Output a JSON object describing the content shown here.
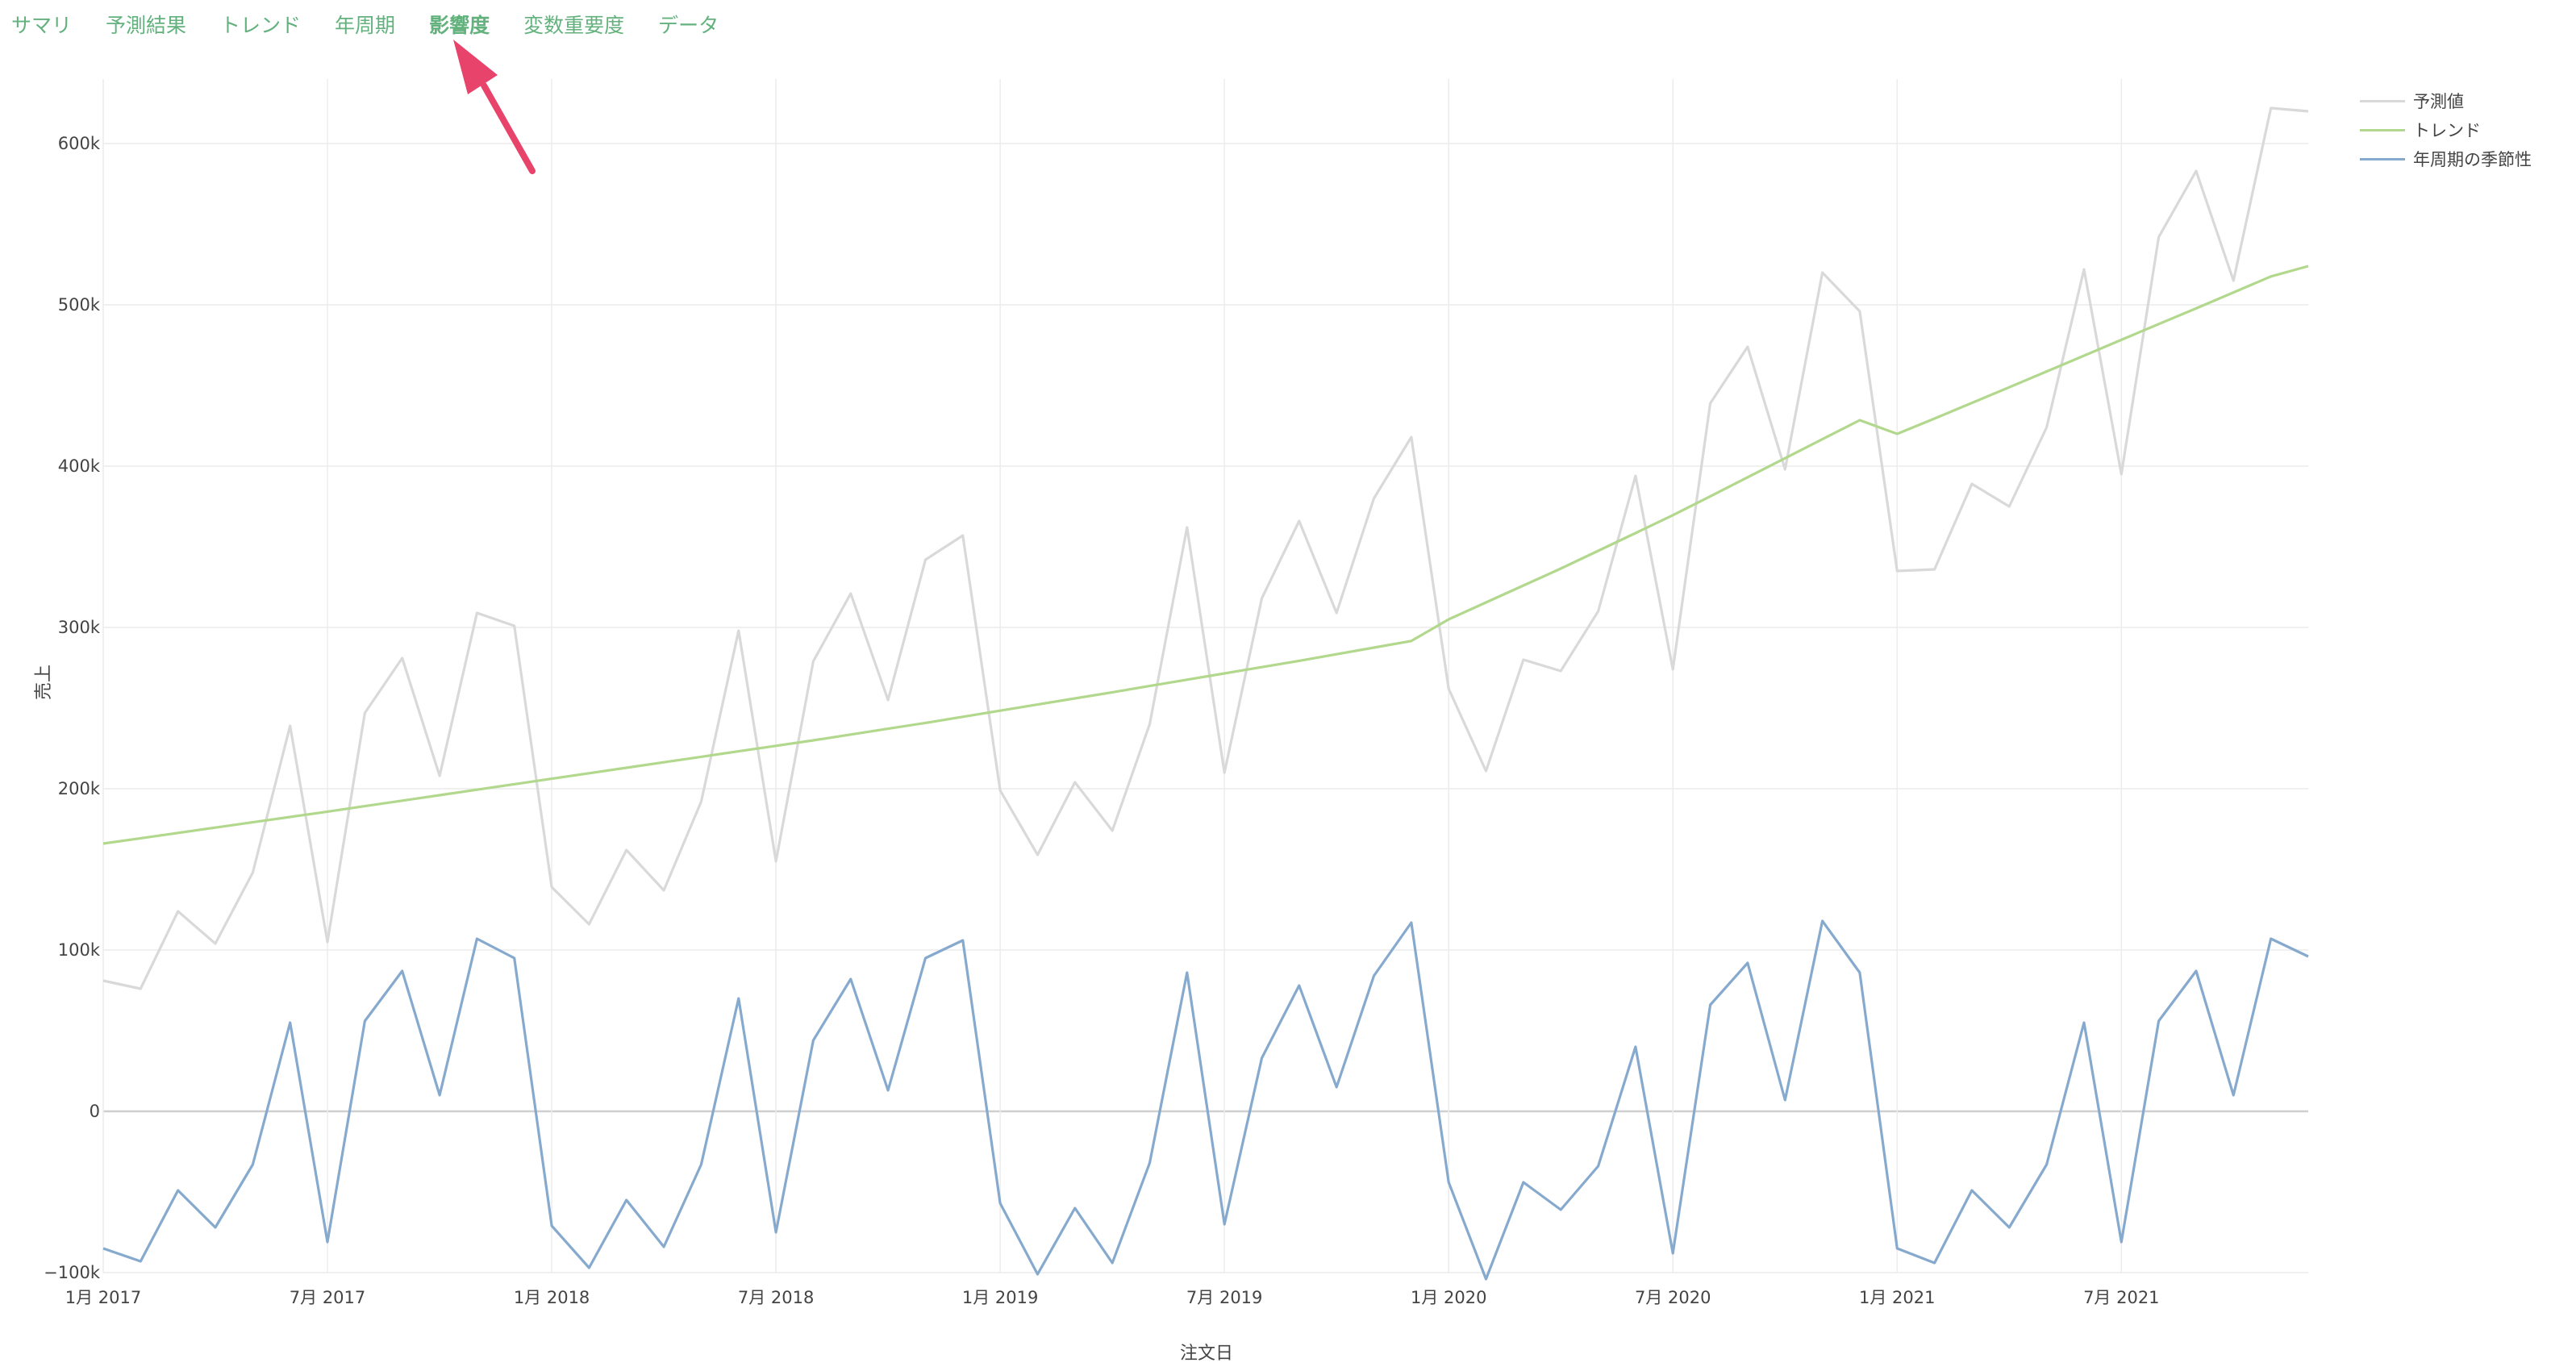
{
  "tabs": [
    {
      "label": "サマリ",
      "active": false
    },
    {
      "label": "予測結果",
      "active": false
    },
    {
      "label": "トレンド",
      "active": false
    },
    {
      "label": "年周期",
      "active": false
    },
    {
      "label": "影響度",
      "active": true
    },
    {
      "label": "変数重要度",
      "active": false
    },
    {
      "label": "データ",
      "active": false
    }
  ],
  "colors": {
    "tab_text": "#63b27e",
    "annotation_arrow": "#e8436a",
    "grid": "#ececec",
    "zero_line": "#cfcfcf"
  },
  "chart_data": {
    "type": "line",
    "xlabel": "注文日",
    "ylabel": "売上",
    "ylim": [
      -100000,
      640000
    ],
    "grid": true,
    "legend_position": "top-right",
    "x_start": "2017-01",
    "x_interval": "month",
    "xticks": [
      "1月 2017",
      "7月 2017",
      "1月 2018",
      "7月 2018",
      "1月 2019",
      "7月 2019",
      "1月 2020",
      "7月 2020",
      "1月 2021",
      "7月 2021"
    ],
    "yticks": [
      {
        "value": -100000,
        "label": "−100k"
      },
      {
        "value": 0,
        "label": "0"
      },
      {
        "value": 100000,
        "label": "100k"
      },
      {
        "value": 200000,
        "label": "200k"
      },
      {
        "value": 300000,
        "label": "300k"
      },
      {
        "value": 400000,
        "label": "400k"
      },
      {
        "value": 500000,
        "label": "500k"
      },
      {
        "value": 600000,
        "label": "600k"
      }
    ],
    "series": [
      {
        "name": "予測値",
        "color": "#d9d9d9",
        "values": [
          81000,
          76000,
          124000,
          104000,
          148000,
          239000,
          105000,
          247000,
          281000,
          208000,
          309000,
          301000,
          139000,
          116000,
          162000,
          137000,
          192000,
          298000,
          155000,
          279000,
          321000,
          255000,
          342000,
          357000,
          199000,
          159000,
          204000,
          174000,
          240000,
          362000,
          210000,
          318000,
          366000,
          309000,
          380000,
          418000,
          262000,
          211000,
          280000,
          273000,
          310000,
          394000,
          274000,
          439000,
          474000,
          398000,
          520000,
          496000,
          335000,
          336000,
          389000,
          375000,
          424000,
          522000,
          395000,
          542000,
          583000,
          515000,
          622000,
          620000
        ]
      },
      {
        "name": "トレンド",
        "color": "#b2d88d",
        "values": [
          166000,
          169300,
          172600,
          175900,
          179200,
          182500,
          185800,
          189200,
          192600,
          196000,
          199400,
          202800,
          206200,
          209600,
          213000,
          216400,
          219800,
          223200,
          226600,
          230000,
          233600,
          237200,
          240800,
          244600,
          248400,
          252200,
          256000,
          259800,
          263700,
          267600,
          271500,
          275400,
          279300,
          283400,
          287500,
          291600,
          305000,
          315500,
          326000,
          336500,
          347500,
          358500,
          369600,
          381300,
          393100,
          404900,
          416700,
          428500,
          420000,
          429500,
          439200,
          448900,
          458700,
          468500,
          478300,
          488100,
          497800,
          507700,
          517600,
          524000
        ]
      },
      {
        "name": "年周期の季節性",
        "color": "#86a9ce",
        "values": [
          -85000,
          -93000,
          -49000,
          -72000,
          -33000,
          55000,
          -81000,
          56000,
          87000,
          10000,
          107000,
          95000,
          -71000,
          -97000,
          -55000,
          -84000,
          -33000,
          70000,
          -75000,
          44000,
          82000,
          13000,
          95000,
          106000,
          -57000,
          -101000,
          -60000,
          -94000,
          -32000,
          86000,
          -70000,
          33000,
          78000,
          15000,
          84000,
          117000,
          -44000,
          -104000,
          -44000,
          -61000,
          -34000,
          40000,
          -88000,
          66000,
          92000,
          7000,
          118000,
          86000,
          -85000,
          -94000,
          -49000,
          -72000,
          -33000,
          55000,
          -81000,
          56000,
          87000,
          10000,
          107000,
          96000
        ]
      }
    ]
  }
}
